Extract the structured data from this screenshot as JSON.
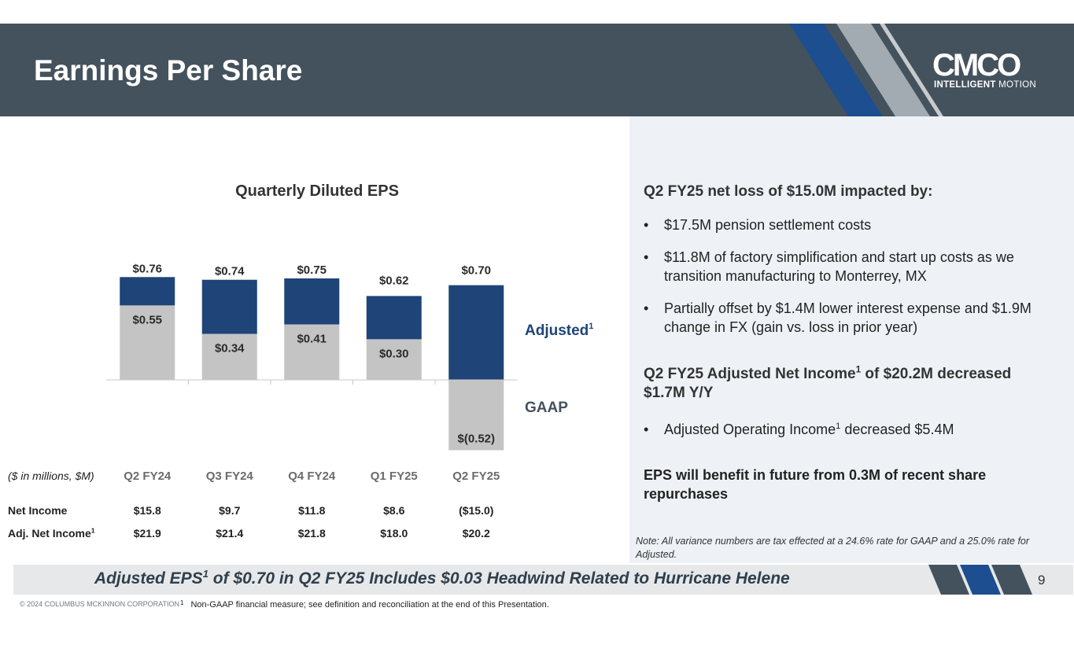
{
  "header": {
    "title": "Earnings Per Share",
    "logo_text": "CMCO",
    "logo_tagline_bold": "INTELLIGENT",
    "logo_tagline_rest": " MOTION"
  },
  "colors": {
    "header_bg": "#44525d",
    "adjusted": "#1f4477",
    "gaap": "#c4c4c4",
    "stripe_blue": "#1d4e8f",
    "stripe_gray": "#a3abb2"
  },
  "chart_data": {
    "type": "bar",
    "title": "Quarterly Diluted EPS",
    "categories": [
      "Q2 FY24",
      "Q3 FY24",
      "Q4 FY24",
      "Q1 FY25",
      "Q2 FY25"
    ],
    "series": [
      {
        "name": "GAAP",
        "values": [
          0.55,
          0.34,
          0.41,
          0.3,
          -0.52
        ],
        "labels": [
          "$0.55",
          "$0.34",
          "$0.41",
          "$0.30",
          "$(0.52)"
        ]
      },
      {
        "name": "Adjusted",
        "values": [
          0.76,
          0.74,
          0.75,
          0.62,
          0.7
        ],
        "labels": [
          "$0.76",
          "$0.74",
          "$0.75",
          "$0.62",
          "$0.70"
        ]
      }
    ],
    "legend": {
      "adjusted_label": "Adjusted",
      "adjusted_sup": "1",
      "gaap_label": "GAAP"
    },
    "ylim": [
      -0.52,
      0.76
    ]
  },
  "table": {
    "units_label": "($ in millions, $M)",
    "columns": [
      "Q2 FY24",
      "Q3 FY24",
      "Q4 FY24",
      "Q1 FY25",
      "Q2 FY25"
    ],
    "rows": [
      {
        "label": "Net Income",
        "sup": "",
        "values": [
          "$15.8",
          "$9.7",
          "$11.8",
          "$8.6",
          "($15.0)"
        ]
      },
      {
        "label": "Adj. Net Income",
        "sup": "1",
        "values": [
          "$21.9",
          "$21.4",
          "$21.8",
          "$18.0",
          "$20.2"
        ]
      }
    ]
  },
  "commentary": {
    "heading1": "Q2 FY25 net loss of $15.0M impacted by:",
    "bullets1": [
      "$17.5M pension settlement costs",
      "$11.8M of factory simplification and start up costs as we transition manufacturing to Monterrey, MX",
      "Partially offset by $1.4M lower interest expense and $1.9M change in FX (gain vs. loss in prior year)"
    ],
    "heading2_pre": "Q2 FY25 Adjusted Net Income",
    "heading2_sup": "1",
    "heading2_post": " of $20.2M decreased $1.7M Y/Y",
    "bullet2_pre": "Adjusted Operating Income",
    "bullet2_sup": "1",
    "bullet2_post": " decreased $5.4M",
    "eps_note": "EPS will benefit in future from 0.3M of recent share repurchases",
    "tax_note": "Note: All variance numbers are tax effected at a 24.6% rate for GAAP and a 25.0% rate for Adjusted."
  },
  "footer": {
    "banner_pre": "Adjusted EPS",
    "banner_sup": "1",
    "banner_post": " of $0.70 in Q2 FY25 Includes $0.03 Headwind Related to Hurricane Helene",
    "page_number": "9",
    "copyright": "© 2024 COLUMBUS MCKINNON CORPORATION",
    "footnote_num": "1",
    "footnote_text": "Non-GAAP financial measure; see definition and reconciliation at the end of this Presentation."
  }
}
